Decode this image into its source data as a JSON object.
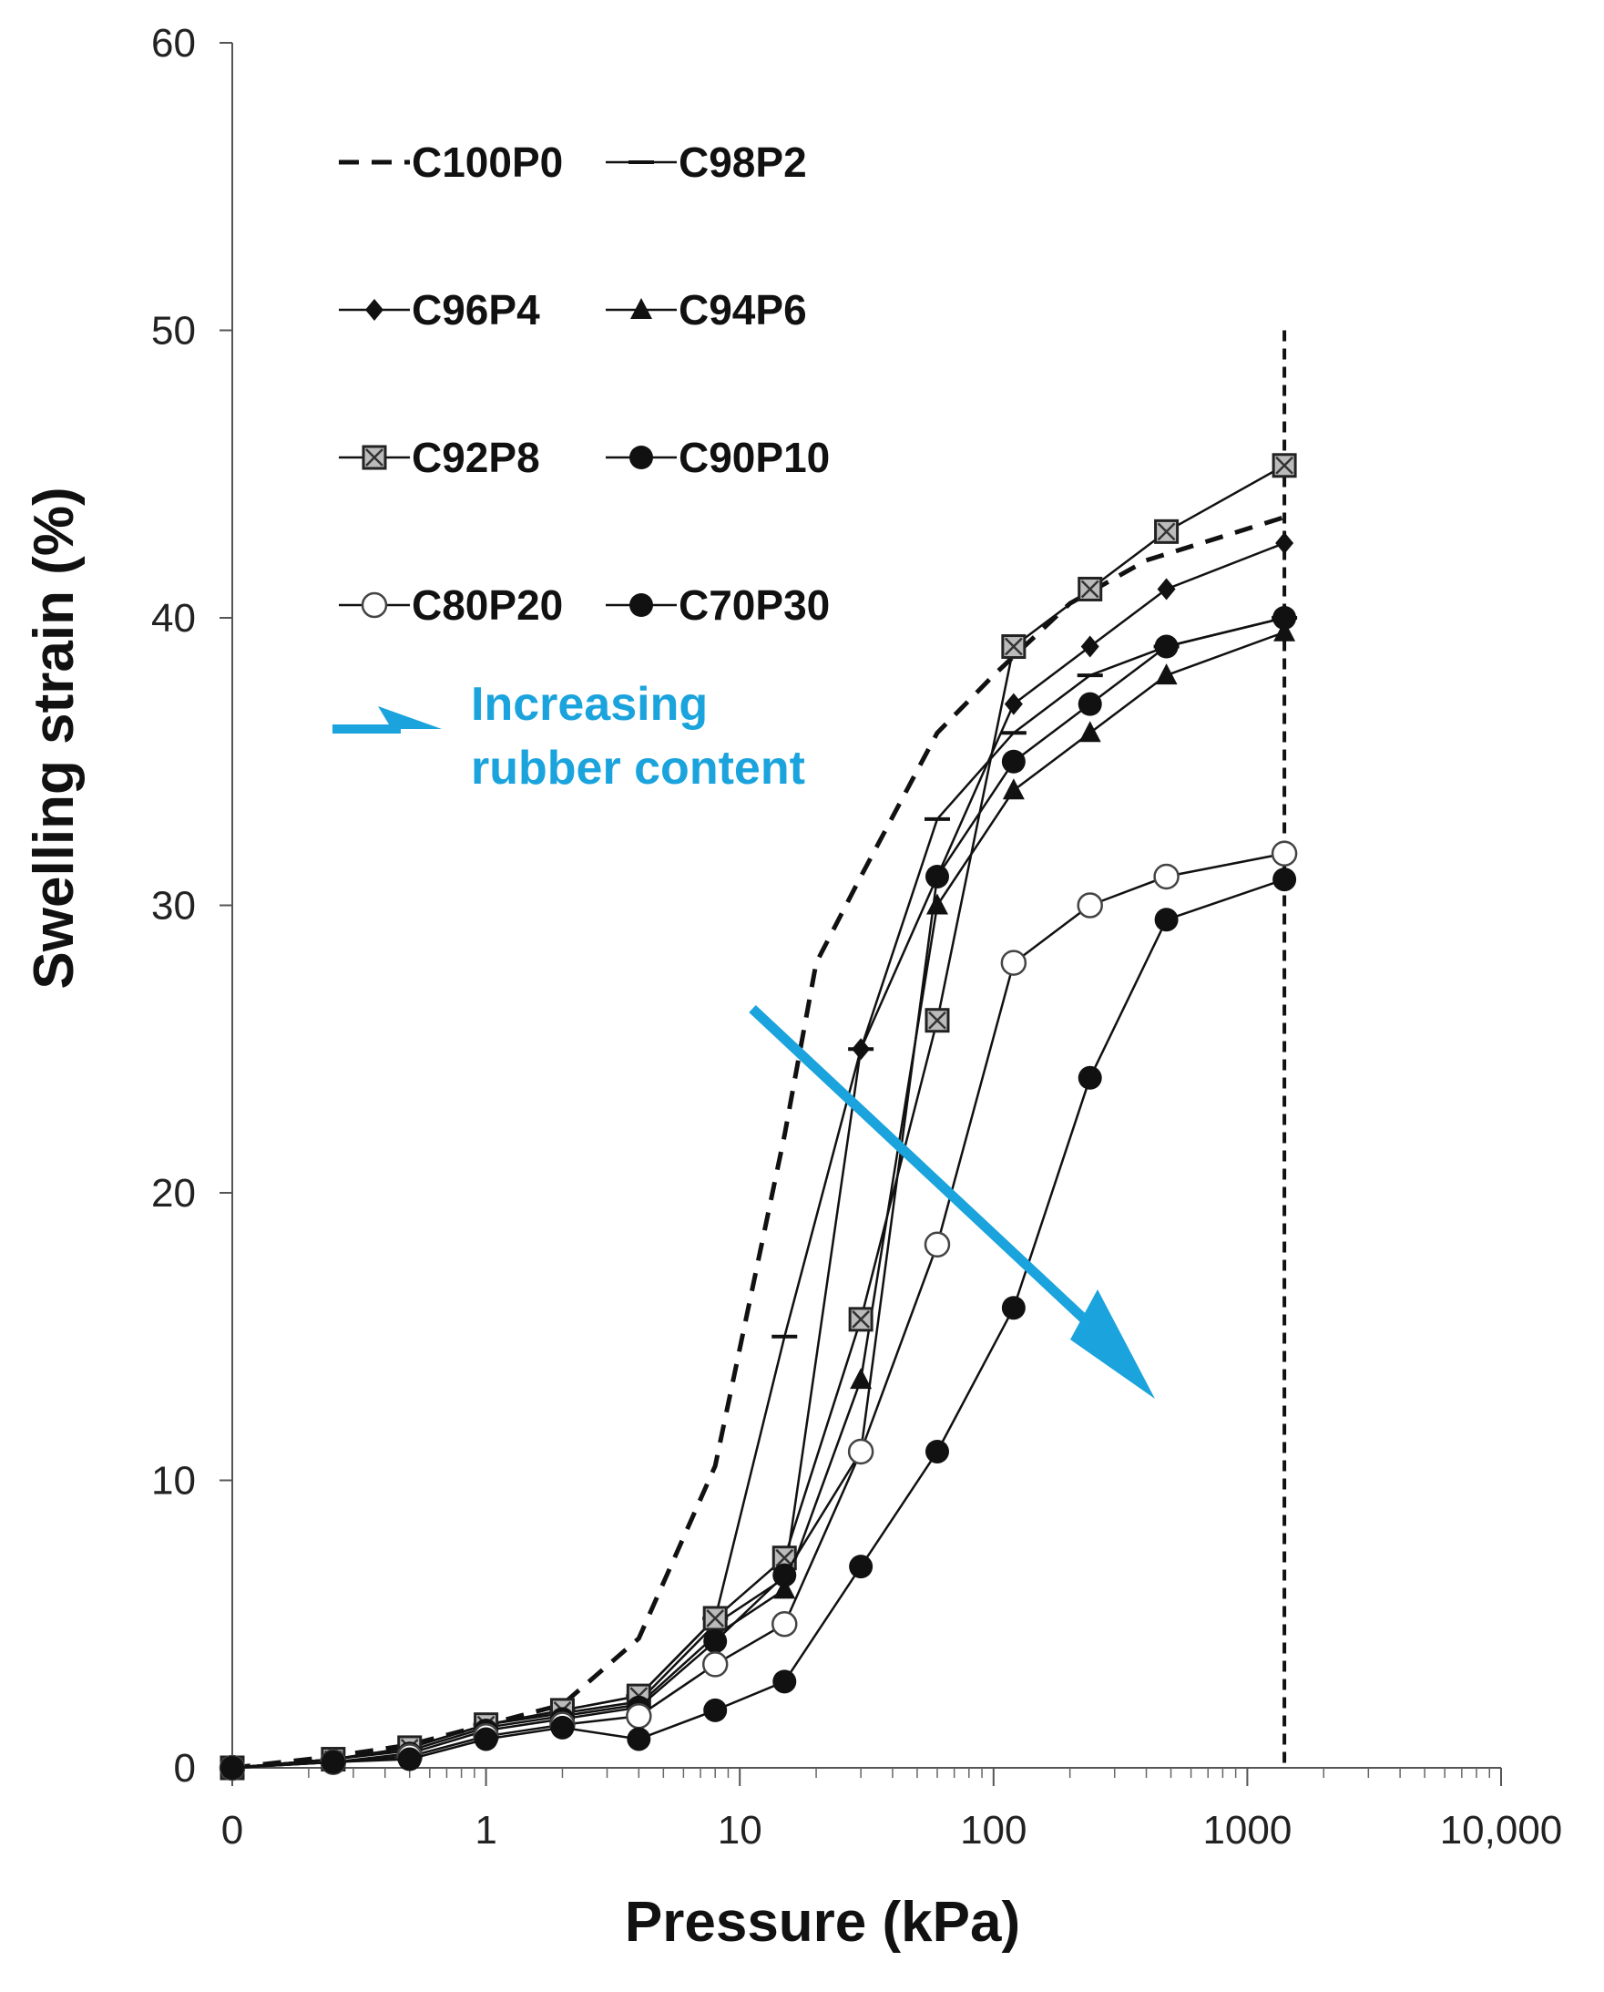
{
  "chart_data": {
    "type": "line",
    "xlabel": "Pressure (kPa)",
    "ylabel": "Swelling strain (%)",
    "x_scale": "log",
    "x_tick_labels": [
      "0",
      "1",
      "10",
      "100",
      "1000",
      "10,000"
    ],
    "y_tick_labels": [
      "0",
      "10",
      "20",
      "30",
      "40",
      "50",
      "60"
    ],
    "ylim": [
      0,
      60
    ],
    "xlim": [
      0.1,
      10000
    ],
    "grid": false,
    "legend_placement": "top-left",
    "reference_line": {
      "x": 1400,
      "style": "dashed",
      "ymax": 50
    },
    "annotation": {
      "text_lines": [
        "Increasing",
        "rubber content"
      ],
      "color": "#1aa3dc"
    },
    "series": [
      {
        "name": "C100P0",
        "marker": "none",
        "dash": true,
        "x": [
          0.1,
          0.25,
          0.5,
          1,
          2,
          4,
          8,
          15,
          20,
          30,
          60,
          100,
          200,
          400,
          1400
        ],
        "y": [
          0,
          0.4,
          0.8,
          1.5,
          2.2,
          4.5,
          10.5,
          22,
          28,
          31,
          36,
          38,
          40.5,
          42,
          43.5
        ]
      },
      {
        "name": "C98P2",
        "marker": "dash",
        "x": [
          0.1,
          0.25,
          0.5,
          1,
          2,
          4,
          8,
          15,
          30,
          60,
          120,
          240,
          480,
          1400
        ],
        "y": [
          0,
          0.3,
          0.7,
          1.5,
          2,
          2.5,
          5.2,
          15,
          25,
          33,
          36,
          38,
          39,
          40
        ]
      },
      {
        "name": "C96P4",
        "marker": "diamond",
        "x": [
          0.1,
          0.25,
          0.5,
          1,
          2,
          4,
          8,
          15,
          30,
          60,
          120,
          240,
          480,
          1400
        ],
        "y": [
          0,
          0.3,
          0.7,
          1.5,
          1.9,
          2.3,
          5,
          6.6,
          25,
          31,
          37,
          39,
          41,
          42.6
        ]
      },
      {
        "name": "C94P6",
        "marker": "triangle",
        "x": [
          0.1,
          0.25,
          0.5,
          1,
          2,
          4,
          8,
          15,
          30,
          60,
          120,
          240,
          480,
          1400
        ],
        "y": [
          0,
          0.3,
          0.6,
          1.4,
          1.8,
          2.2,
          4.6,
          6.2,
          13.5,
          30,
          34,
          36,
          38,
          39.5
        ]
      },
      {
        "name": "C92P8",
        "marker": "boxed-x",
        "x": [
          0.1,
          0.25,
          0.5,
          1,
          2,
          4,
          8,
          15,
          30,
          60,
          120,
          240,
          480,
          1400
        ],
        "y": [
          0,
          0.3,
          0.7,
          1.5,
          2,
          2.5,
          5.2,
          7.3,
          15.6,
          26,
          39,
          41,
          43,
          45.3
        ]
      },
      {
        "name": "C90P10",
        "marker": "filled-circle",
        "x": [
          0.1,
          0.25,
          0.5,
          1,
          2,
          4,
          8,
          15,
          30,
          60,
          120,
          240,
          480,
          1400
        ],
        "y": [
          0,
          0.2,
          0.5,
          1.3,
          1.7,
          2.1,
          4.4,
          6.7,
          11,
          31,
          35,
          37,
          39,
          40
        ]
      },
      {
        "name": "C80P20",
        "marker": "open-circle",
        "x": [
          0.1,
          0.25,
          0.5,
          1,
          2,
          4,
          8,
          15,
          30,
          60,
          120,
          240,
          480,
          1400
        ],
        "y": [
          0,
          0.2,
          0.4,
          1.1,
          1.5,
          1.8,
          3.6,
          5,
          11,
          18.2,
          28,
          30,
          31,
          31.8
        ]
      },
      {
        "name": "C70P30",
        "marker": "filled-circle",
        "x": [
          0.1,
          0.25,
          0.5,
          1,
          2,
          4,
          8,
          15,
          30,
          60,
          120,
          240,
          480,
          1400
        ],
        "y": [
          0,
          0.2,
          0.3,
          1,
          1.4,
          1,
          2,
          3,
          7,
          11,
          16,
          24,
          29.5,
          30.9
        ]
      }
    ]
  }
}
